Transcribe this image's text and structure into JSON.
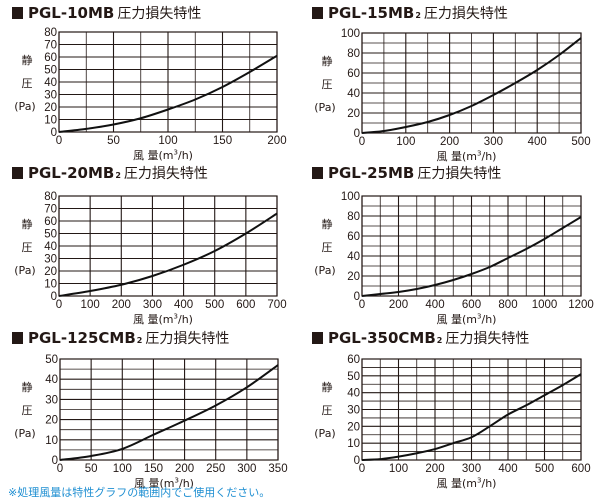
{
  "page": {
    "footnote": "※処理風量は特性グラフの範囲内でご使用ください。",
    "title_suffix": "圧力損失特性",
    "ylabel": [
      "静",
      "圧",
      "(Pa)"
    ],
    "xlabel_prefix": "風 量(m",
    "xlabel_sup": "3",
    "xlabel_suffix": "/h)",
    "colors": {
      "text": "#231815",
      "grid": "#231815",
      "footnote": "#1f8fd2"
    }
  },
  "chart_data": [
    {
      "type": "line",
      "title": "PGL-10MB 圧力損失特性",
      "model": "PGL-10MB",
      "subscript": "",
      "xlabel": "風 量(m3/h)",
      "ylabel": "静圧(Pa)",
      "xlim": [
        0,
        200
      ],
      "ylim": [
        0,
        80
      ],
      "x_ticks": [
        0,
        50,
        100,
        150,
        200
      ],
      "y_ticks": [
        0,
        10,
        20,
        30,
        40,
        50,
        60,
        70,
        80
      ],
      "x_grid_step": 25,
      "y_grid_step": 10,
      "grid": true,
      "x": [
        0,
        25,
        50,
        75,
        100,
        125,
        150,
        175,
        200
      ],
      "values": [
        0,
        2.5,
        6,
        11,
        18,
        26,
        36,
        48,
        61
      ]
    },
    {
      "type": "line",
      "title": "PGL-15MB2 圧力損失特性",
      "model": "PGL-15MB",
      "subscript": "2",
      "xlabel": "風 量(m3/h)",
      "ylabel": "静圧(Pa)",
      "xlim": [
        0,
        500
      ],
      "ylim": [
        0,
        100
      ],
      "x_ticks": [
        0,
        100,
        200,
        300,
        400,
        500
      ],
      "y_ticks": [
        0,
        20,
        40,
        60,
        80,
        100
      ],
      "x_grid_step": 50,
      "y_grid_step": 10,
      "grid": true,
      "x": [
        0,
        50,
        100,
        150,
        200,
        250,
        300,
        350,
        400,
        450,
        500
      ],
      "values": [
        0,
        2,
        6,
        11,
        18,
        27,
        38,
        50,
        63,
        78,
        95
      ]
    },
    {
      "type": "line",
      "title": "PGL-20MB2 圧力損失特性",
      "model": "PGL-20MB",
      "subscript": "2",
      "xlabel": "風 量(m3/h)",
      "ylabel": "静圧(Pa)",
      "xlim": [
        0,
        700
      ],
      "ylim": [
        0,
        80
      ],
      "x_ticks": [
        0,
        100,
        200,
        300,
        400,
        500,
        600,
        700
      ],
      "y_ticks": [
        0,
        10,
        20,
        30,
        40,
        50,
        60,
        70,
        80
      ],
      "x_grid_step": 100,
      "y_grid_step": 10,
      "grid": true,
      "x": [
        0,
        100,
        200,
        300,
        400,
        500,
        600,
        700
      ],
      "values": [
        0,
        4,
        9,
        16,
        25,
        36,
        50,
        66
      ]
    },
    {
      "type": "line",
      "title": "PGL-25MB 圧力損失特性",
      "model": "PGL-25MB",
      "subscript": "",
      "xlabel": "風 量(m3/h)",
      "ylabel": "静圧(Pa)",
      "xlim": [
        0,
        1200
      ],
      "ylim": [
        0,
        100
      ],
      "x_ticks": [
        0,
        200,
        400,
        600,
        800,
        1000,
        1200
      ],
      "y_ticks": [
        0,
        20,
        40,
        60,
        80,
        100
      ],
      "x_grid_step": 100,
      "y_grid_step": 10,
      "grid": true,
      "x": [
        0,
        100,
        200,
        300,
        400,
        500,
        600,
        700,
        800,
        900,
        1000,
        1100,
        1200
      ],
      "values": [
        0,
        2,
        4,
        7,
        11,
        16,
        22,
        29,
        38,
        47,
        57,
        68,
        79
      ]
    },
    {
      "type": "line",
      "title": "PGL-125CMB2 圧力損失特性",
      "model": "PGL-125CMB",
      "subscript": "2",
      "xlabel": "風 量(m3/h)",
      "ylabel": "静圧(Pa)",
      "xlim": [
        0,
        350
      ],
      "ylim": [
        0,
        50
      ],
      "x_ticks": [
        0,
        50,
        100,
        150,
        200,
        250,
        300,
        350
      ],
      "y_ticks": [
        0,
        10,
        20,
        30,
        40,
        50
      ],
      "x_grid_step": 50,
      "y_grid_step": 5,
      "grid": true,
      "x": [
        0,
        50,
        100,
        150,
        200,
        250,
        300,
        350
      ],
      "values": [
        0,
        2,
        5.5,
        12.5,
        19.5,
        27,
        36,
        47
      ]
    },
    {
      "type": "line",
      "title": "PGL-350CMB2 圧力損失特性",
      "model": "PGL-350CMB",
      "subscript": "2",
      "xlabel": "風 量(m3/h)",
      "ylabel": "静圧(Pa)",
      "xlim": [
        0,
        600
      ],
      "ylim": [
        0,
        60
      ],
      "x_ticks": [
        0,
        100,
        200,
        300,
        400,
        500,
        600
      ],
      "y_ticks": [
        0,
        10,
        20,
        30,
        40,
        50,
        60
      ],
      "x_grid_step": 50,
      "y_grid_step": 5,
      "grid": true,
      "x": [
        0,
        50,
        100,
        150,
        200,
        250,
        300,
        350,
        400,
        450,
        500,
        550,
        600
      ],
      "values": [
        0,
        0.5,
        2,
        4,
        6.5,
        10,
        13.5,
        20,
        27,
        32.5,
        38.5,
        44.5,
        51
      ]
    }
  ]
}
